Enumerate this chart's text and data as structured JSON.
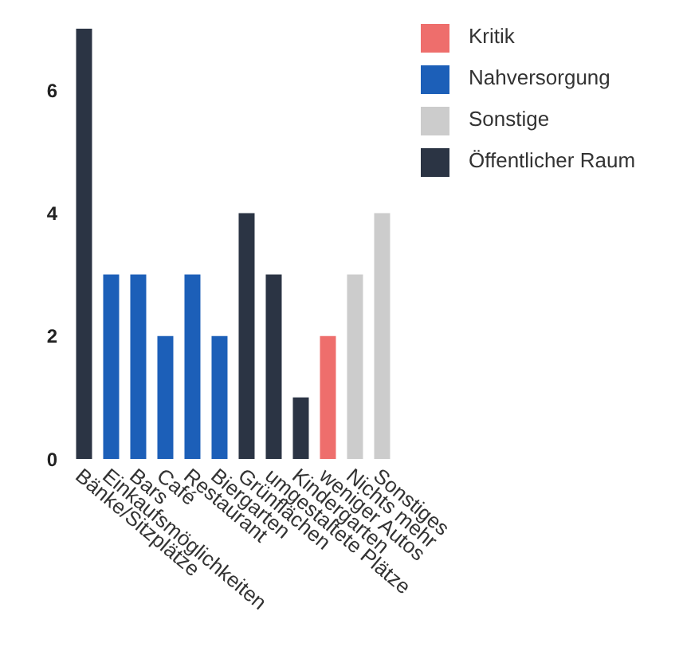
{
  "chart_data": {
    "type": "bar",
    "categories": [
      "Bänke/Sitzplätze",
      "Einkaufsmöglichkeiten",
      "Bars",
      "Café",
      "Restaurant",
      "Biergarten",
      "Grünflächen",
      "umgestaltete Plätze",
      "Kindergarten",
      "weniger Autos",
      "Nichts mehr",
      "Sonstiges"
    ],
    "series": [
      {
        "name": "Öffentlicher Raum",
        "color": "#2b3444",
        "values": [
          7,
          null,
          null,
          null,
          null,
          null,
          4,
          3,
          1,
          null,
          null,
          null
        ]
      },
      {
        "name": "Nahversorgung",
        "color": "#1c5fb8",
        "values": [
          null,
          3,
          3,
          2,
          3,
          2,
          null,
          null,
          null,
          null,
          null,
          null
        ]
      },
      {
        "name": "Kritik",
        "color": "#ee6e6c",
        "values": [
          null,
          null,
          null,
          null,
          null,
          null,
          null,
          null,
          null,
          2,
          null,
          null
        ]
      },
      {
        "name": "Sonstige",
        "color": "#cccccc",
        "values": [
          null,
          null,
          null,
          null,
          null,
          null,
          null,
          null,
          null,
          null,
          3,
          4
        ]
      }
    ],
    "stacked": true,
    "ylim": [
      0,
      7
    ],
    "yticks": [
      0,
      2,
      4,
      6
    ],
    "grid": false,
    "legend": "top right"
  }
}
